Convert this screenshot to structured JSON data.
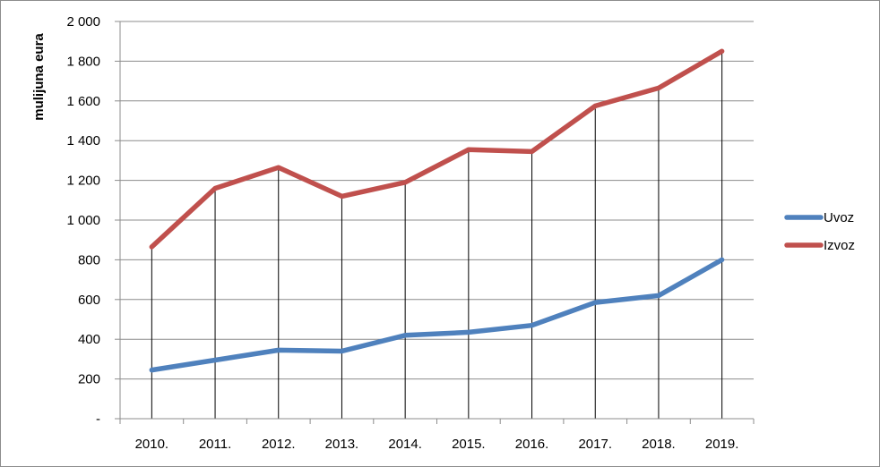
{
  "chart_data": {
    "type": "line",
    "ylabel": "mulijuna eura",
    "xlabel": "",
    "categories": [
      "2010.",
      "2011.",
      "2012.",
      "2013.",
      "2014.",
      "2015.",
      "2016.",
      "2017.",
      "2018.",
      "2019."
    ],
    "ylim": [
      0,
      2000
    ],
    "yticks": [
      0,
      200,
      400,
      600,
      800,
      1000,
      1200,
      1400,
      1600,
      1800,
      2000
    ],
    "ytick_labels": [
      "-",
      "200",
      "400",
      "600",
      "800",
      "1 000",
      "1 200",
      "1 400",
      "1 600",
      "1 800",
      "2 000"
    ],
    "series": [
      {
        "name": "Uvoz",
        "color": "#4f81bd",
        "values": [
          245,
          295,
          345,
          340,
          420,
          435,
          470,
          585,
          620,
          800
        ]
      },
      {
        "name": "Izvoz",
        "color": "#c0504d",
        "values": [
          865,
          1160,
          1265,
          1120,
          1190,
          1355,
          1345,
          1575,
          1665,
          1850
        ]
      }
    ],
    "grid": true,
    "drop_lines": true,
    "legend": "right"
  }
}
